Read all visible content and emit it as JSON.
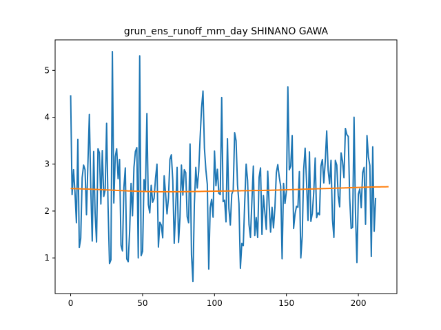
{
  "chart_data": {
    "type": "line",
    "title": "grun_ens_runoff_mm_day SHINANO GAWA",
    "xlabel": "",
    "ylabel": "",
    "xlim": [
      -10.8,
      226.8
    ],
    "ylim": [
      0.24,
      5.65
    ],
    "xticks": [
      0,
      50,
      100,
      150,
      200
    ],
    "yticks": [
      1,
      2,
      3,
      4,
      5
    ],
    "grid": false,
    "legend": "none",
    "colors": {
      "series": "#1f77b4",
      "trend": "#ff7f0e",
      "axes": "#000000",
      "background": "#ffffff"
    },
    "series": [
      {
        "values": [
          4.47,
          2.35,
          2.88,
          2.4,
          1.75,
          3.53,
          1.22,
          1.42,
          2.71,
          2.98,
          2.88,
          1.92,
          3.02,
          4.06,
          2.48,
          1.36,
          3.27,
          1.95,
          1.34,
          3.33,
          3.24,
          2.15,
          3.29,
          2.31,
          2.45,
          3.87,
          2.1,
          0.88,
          0.96,
          5.4,
          2.17,
          3.16,
          3.33,
          2.69,
          3.1,
          1.27,
          1.15,
          2.5,
          2.92,
          0.98,
          0.92,
          1.56,
          2.59,
          1.9,
          2.93,
          3.27,
          3.35,
          1.0,
          5.31,
          1.05,
          1.14,
          2.67,
          2.43,
          4.08,
          2.14,
          1.96,
          2.55,
          2.19,
          2.27,
          2.7,
          3.0,
          1.23,
          1.76,
          1.7,
          1.43,
          2.75,
          2.37,
          1.94,
          2.28,
          3.1,
          3.2,
          2.65,
          1.31,
          2.04,
          2.93,
          1.33,
          1.86,
          2.98,
          2.34,
          2.88,
          2.82,
          1.88,
          1.75,
          3.43,
          1.07,
          0.5,
          2.15,
          2.93,
          2.49,
          2.85,
          3.56,
          4.2,
          4.56,
          3.34,
          2.88,
          2.57,
          0.76,
          2.07,
          2.25,
          1.87,
          3.28,
          2.54,
          2.89,
          2.38,
          2.35,
          4.42,
          2.2,
          2.23,
          1.77,
          3.54,
          2.06,
          1.7,
          2.36,
          2.44,
          3.67,
          3.5,
          2.56,
          2.16,
          0.78,
          1.31,
          1.26,
          2.18,
          3.0,
          2.65,
          1.71,
          1.44,
          2.22,
          2.96,
          1.48,
          1.86,
          1.44,
          2.72,
          2.92,
          1.5,
          2.33,
          1.98,
          1.61,
          2.85,
          2.13,
          1.55,
          2.08,
          1.64,
          2.07,
          2.82,
          2.99,
          2.73,
          2.53,
          0.98,
          2.59,
          2.16,
          2.43,
          4.65,
          2.88,
          2.96,
          3.61,
          1.63,
          1.94,
          2.1,
          2.08,
          2.84,
          1.0,
          1.47,
          2.89,
          3.34,
          2.62,
          1.8,
          3.26,
          1.78,
          1.95,
          2.4,
          3.13,
          1.86,
          1.96,
          1.92,
          2.96,
          3.1,
          2.6,
          3.06,
          3.71,
          2.87,
          2.58,
          3.08,
          1.82,
          1.44,
          3.08,
          2.98,
          2.33,
          2.09,
          3.24,
          3.06,
          2.71,
          3.76,
          3.63,
          3.59,
          2.27,
          1.63,
          1.65,
          4.0,
          1.98,
          0.9,
          2.36,
          2.47,
          2.07,
          2.82,
          2.93,
          1.72,
          3.61,
          3.15,
          2.97,
          1.03,
          3.37,
          1.57,
          2.28
        ]
      },
      {
        "values": [
          2.48,
          2.479,
          2.478,
          2.477,
          2.476,
          2.475,
          2.474,
          2.473,
          2.472,
          2.471,
          2.47,
          2.469,
          2.468,
          2.467,
          2.466,
          2.465,
          2.463,
          2.462,
          2.461,
          2.459,
          2.458,
          2.457,
          2.455,
          2.454,
          2.452,
          2.451,
          2.449,
          2.448,
          2.446,
          2.445,
          2.443,
          2.442,
          2.44,
          2.439,
          2.437,
          2.436,
          2.435,
          2.433,
          2.432,
          2.431,
          2.429,
          2.428,
          2.427,
          2.426,
          2.425,
          2.423,
          2.422,
          2.421,
          2.42,
          2.419,
          2.418,
          2.418,
          2.417,
          2.416,
          2.415,
          2.415,
          2.414,
          2.414,
          2.413,
          2.413,
          2.412,
          2.412,
          2.412,
          2.411,
          2.411,
          2.411,
          2.411,
          2.411,
          2.411,
          2.411,
          2.411,
          2.411,
          2.411,
          2.411,
          2.411,
          2.412,
          2.412,
          2.412,
          2.413,
          2.413,
          2.413,
          2.414,
          2.414,
          2.415,
          2.415,
          2.416,
          2.416,
          2.417,
          2.417,
          2.418,
          2.418,
          2.419,
          2.419,
          2.42,
          2.42,
          2.421,
          2.421,
          2.422,
          2.422,
          2.423,
          2.423,
          2.424,
          2.424,
          2.425,
          2.425,
          2.426,
          2.426,
          2.427,
          2.427,
          2.428,
          2.428,
          2.429,
          2.429,
          2.43,
          2.43,
          2.431,
          2.431,
          2.432,
          2.432,
          2.433,
          2.433,
          2.434,
          2.434,
          2.435,
          2.435,
          2.436,
          2.436,
          2.437,
          2.437,
          2.438,
          2.438,
          2.439,
          2.439,
          2.44,
          2.44,
          2.441,
          2.441,
          2.442,
          2.443,
          2.443,
          2.444,
          2.445,
          2.446,
          2.446,
          2.447,
          2.448,
          2.449,
          2.45,
          2.451,
          2.452,
          2.453,
          2.454,
          2.455,
          2.456,
          2.457,
          2.458,
          2.459,
          2.46,
          2.461,
          2.462,
          2.463,
          2.464,
          2.465,
          2.466,
          2.467,
          2.468,
          2.469,
          2.47,
          2.471,
          2.472,
          2.473,
          2.474,
          2.475,
          2.476,
          2.477,
          2.478,
          2.479,
          2.48,
          2.481,
          2.482,
          2.483,
          2.484,
          2.485,
          2.486,
          2.487,
          2.488,
          2.489,
          2.49,
          2.491,
          2.492,
          2.493,
          2.494,
          2.495,
          2.496,
          2.497,
          2.498,
          2.499,
          2.5,
          2.501,
          2.502,
          2.503,
          2.504,
          2.505,
          2.506,
          2.507,
          2.508,
          2.509,
          2.51,
          2.511,
          2.512,
          2.513,
          2.513,
          2.514,
          2.514,
          2.515,
          2.515,
          2.516,
          2.516,
          2.517,
          2.517,
          2.518,
          2.518
        ]
      }
    ]
  }
}
